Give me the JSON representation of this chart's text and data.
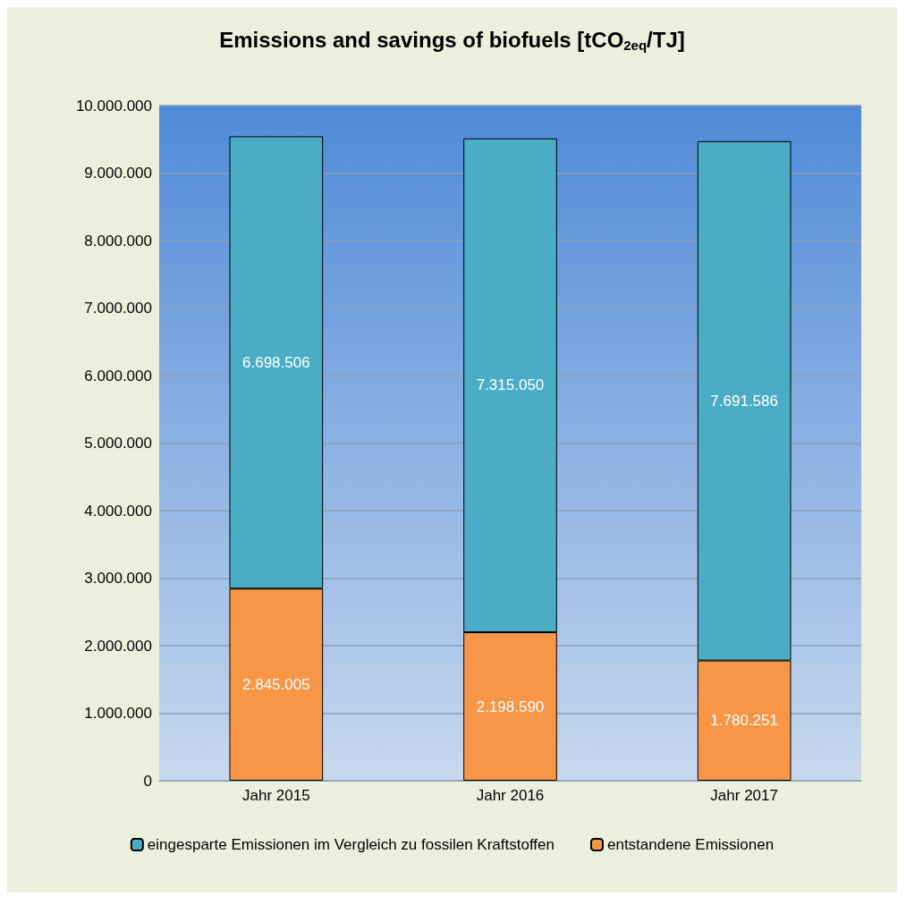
{
  "chart_data": {
    "type": "bar",
    "title": "Emissions and savings of biofuels [tCO$_{2eq}$/TJ]",
    "categories": [
      "Jahr 2015",
      "Jahr 2016",
      "Jahr 2017"
    ],
    "stacked": true,
    "series": [
      {
        "name": "entstandene Emissionen",
        "color": "#f79646",
        "values": [
          2845005,
          2198590,
          1780251
        ],
        "value_labels": [
          "2.845.005",
          "2.198.590",
          "1.780.251"
        ]
      },
      {
        "name": "eingesparte Emissionen im Vergleich zu fossilen Kraftstoffen",
        "color": "#4bacc6",
        "values": [
          6698506,
          7315050,
          7691586
        ],
        "value_labels": [
          "6.698.506",
          "7.315.050",
          "7.691.586"
        ]
      }
    ],
    "ylim": [
      0,
      10000000
    ],
    "yticks": [
      0,
      {
        "value": 1000000,
        "label": "1.000.000"
      },
      {
        "value": 2000000,
        "label": "2.000.000"
      },
      {
        "value": 3000000,
        "label": "3.000.000"
      },
      {
        "value": 4000000,
        "label": "4.000.000"
      },
      {
        "value": 5000000,
        "label": "5.000.000"
      },
      {
        "value": 6000000,
        "label": "6.000.000"
      },
      {
        "value": 7000000,
        "label": "7.000.000"
      },
      {
        "value": 8000000,
        "label": "8.000.000"
      },
      {
        "value": 9000000,
        "label": "9.000.000"
      },
      {
        "value": 10000000,
        "label": "10.000.000"
      }
    ],
    "grid": "y",
    "legend": "bottom"
  }
}
